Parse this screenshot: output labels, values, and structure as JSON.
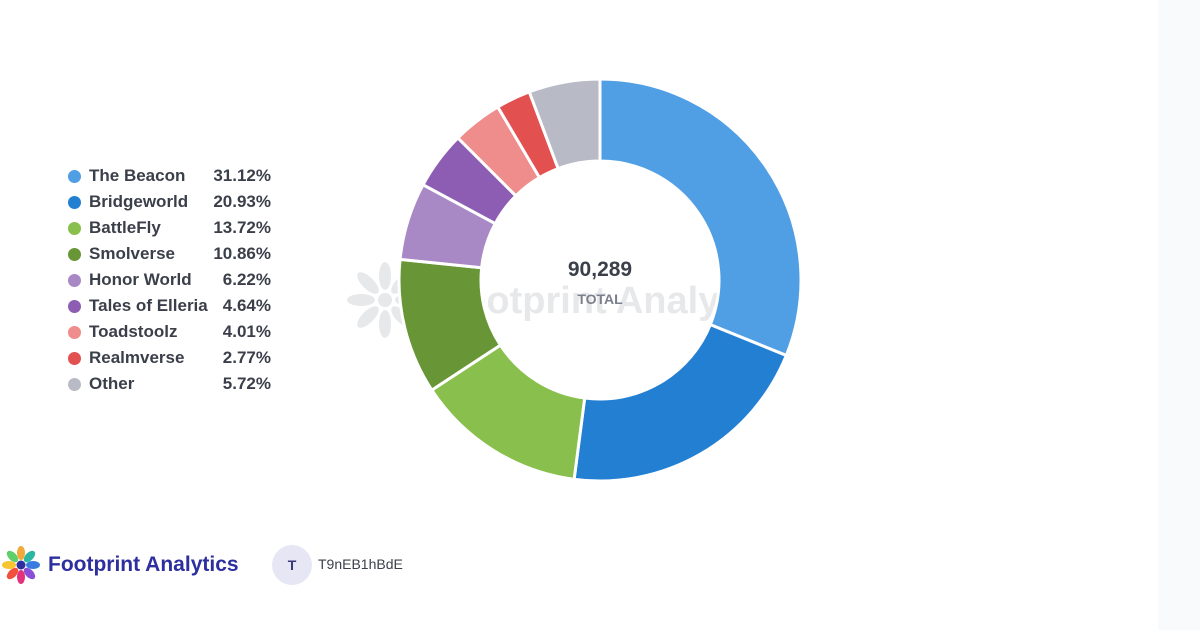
{
  "chart_data": {
    "type": "pie",
    "style": "donut",
    "categories": [
      "The Beacon",
      "Bridgeworld",
      "BattleFly",
      "Smolverse",
      "Honor World",
      "Tales of Elleria",
      "Toadstoolz",
      "Realmverse",
      "Other"
    ],
    "values": [
      31.12,
      20.93,
      13.72,
      10.86,
      6.22,
      4.64,
      4.01,
      2.77,
      5.72
    ],
    "value_labels": [
      "31.12%",
      "20.93%",
      "13.72%",
      "10.86%",
      "6.22%",
      "4.64%",
      "4.01%",
      "2.77%",
      "5.72%"
    ],
    "colors": [
      "#509ee3",
      "#227fd2",
      "#88bf4d",
      "#689636",
      "#a989c5",
      "#8c5db3",
      "#ef8c8c",
      "#e35050",
      "#b8bbc5"
    ],
    "legend_position": "left",
    "center": {
      "total": "90,289",
      "total_label": "TOTAL"
    }
  },
  "watermark": {
    "text": "Footprint Analytics"
  },
  "footer": {
    "brand": "Footprint Analytics",
    "brand_icon": "footprint-flower-logo",
    "avatar_initial": "T",
    "user_id": "T9nEB1hBdE"
  }
}
